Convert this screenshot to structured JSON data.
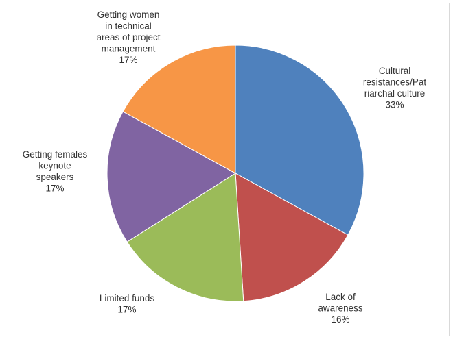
{
  "chart_data": {
    "type": "pie",
    "title": "",
    "start_angle_deg": 0,
    "direction": "clockwise",
    "legend": "none",
    "slices": [
      {
        "label_lines": [
          "Cultural",
          "resistances/Pat",
          "riarchal culture"
        ],
        "percent_label": "33%",
        "value": 33,
        "color": "#4f81bd"
      },
      {
        "label_lines": [
          "Lack of",
          "awareness"
        ],
        "percent_label": "16%",
        "value": 16,
        "color": "#c0504d"
      },
      {
        "label_lines": [
          "Limited funds"
        ],
        "percent_label": "17%",
        "value": 17,
        "color": "#9bbb59"
      },
      {
        "label_lines": [
          "Getting females",
          "keynote",
          "speakers"
        ],
        "percent_label": "17%",
        "value": 17,
        "color": "#8064a2"
      },
      {
        "label_lines": [
          "Getting women",
          "in technical",
          "areas of project",
          "management"
        ],
        "percent_label": "17%",
        "value": 17,
        "color": "#f79646"
      }
    ]
  }
}
